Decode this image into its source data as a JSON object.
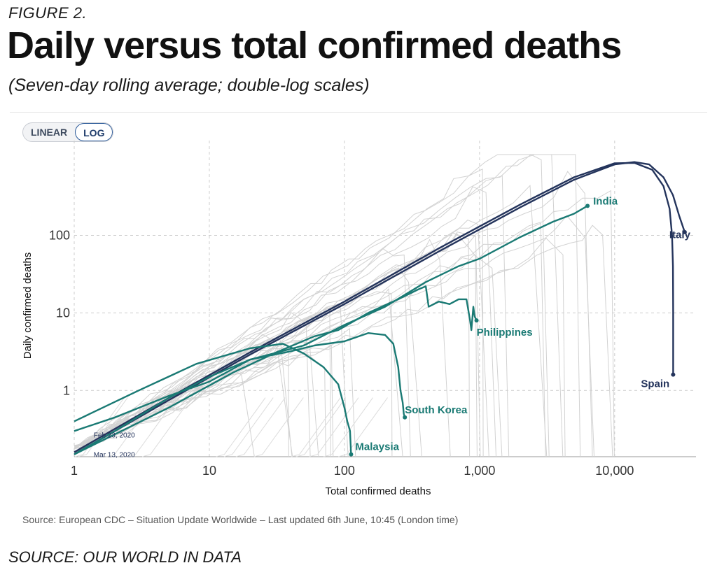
{
  "figure_label": "FIGURE 2.",
  "title": "Daily versus total confirmed deaths",
  "subtitle": "(Seven-day rolling average; double-log scales)",
  "toggle": {
    "linear_label": "LINEAR",
    "log_label": "LOG",
    "selected": "LOG"
  },
  "source_line": "Source: European CDC – Situation Update Worldwide – Last updated 6th June, 10:45 (London time)",
  "figure_source": "SOURCE: OUR WORLD IN DATA",
  "colors": {
    "highlight": "#1a7a74",
    "dark": "#24345c",
    "background_lines": "#cfcfcf",
    "grid": "#cccccc"
  },
  "chart_data": {
    "type": "line",
    "xscale": "log",
    "yscale": "log",
    "xlabel": "Total confirmed deaths",
    "ylabel": "Daily confirmed deaths",
    "xlim": [
      1,
      40000
    ],
    "ylim": [
      0.14,
      1100
    ],
    "x_ticks": [
      {
        "value": 1,
        "label": "1"
      },
      {
        "value": 10,
        "label": "10"
      },
      {
        "value": 100,
        "label": "100"
      },
      {
        "value": 1000,
        "label": "1,000"
      },
      {
        "value": 10000,
        "label": "10,000"
      }
    ],
    "y_ticks": [
      {
        "value": 1,
        "label": "1"
      },
      {
        "value": 10,
        "label": "10"
      },
      {
        "value": 100,
        "label": "100"
      }
    ],
    "grid": "dashed",
    "series": [
      {
        "name": "Italy",
        "color": "#24345c",
        "points": [
          [
            1,
            0.15
          ],
          [
            5,
            0.75
          ],
          [
            20,
            2.9
          ],
          [
            100,
            13
          ],
          [
            500,
            62
          ],
          [
            2000,
            230
          ],
          [
            5000,
            520
          ],
          [
            10000,
            820
          ],
          [
            14000,
            880
          ],
          [
            18000,
            820
          ],
          [
            23000,
            560
          ],
          [
            27000,
            330
          ],
          [
            30000,
            180
          ],
          [
            33000,
            110
          ]
        ]
      },
      {
        "name": "Spain",
        "color": "#24345c",
        "points": [
          [
            1,
            0.16
          ],
          [
            5,
            0.8
          ],
          [
            20,
            3.1
          ],
          [
            100,
            14
          ],
          [
            500,
            68
          ],
          [
            2000,
            250
          ],
          [
            5000,
            560
          ],
          [
            10000,
            850
          ],
          [
            14000,
            860
          ],
          [
            19000,
            700
          ],
          [
            23000,
            430
          ],
          [
            25500,
            220
          ],
          [
            26600,
            100
          ],
          [
            27000,
            40
          ],
          [
            27100,
            10
          ],
          [
            27100,
            1.6
          ]
        ]
      },
      {
        "name": "India",
        "color": "#1a7a74",
        "points": [
          [
            1,
            0.3
          ],
          [
            2,
            0.45
          ],
          [
            5,
            0.85
          ],
          [
            10,
            1.3
          ],
          [
            20,
            2.5
          ],
          [
            50,
            3.8
          ],
          [
            100,
            7
          ],
          [
            200,
            12
          ],
          [
            400,
            25
          ],
          [
            700,
            40
          ],
          [
            1000,
            50
          ],
          [
            2000,
            95
          ],
          [
            3500,
            150
          ],
          [
            5000,
            190
          ],
          [
            6300,
            240
          ]
        ]
      },
      {
        "name": "Philippines",
        "color": "#1a7a74",
        "points": [
          [
            1,
            0.15
          ],
          [
            5,
            0.6
          ],
          [
            15,
            1.7
          ],
          [
            30,
            3
          ],
          [
            60,
            5
          ],
          [
            90,
            6
          ],
          [
            150,
            10
          ],
          [
            250,
            15
          ],
          [
            350,
            20
          ],
          [
            400,
            22
          ],
          [
            420,
            12
          ],
          [
            500,
            14
          ],
          [
            600,
            13
          ],
          [
            700,
            15
          ],
          [
            800,
            15
          ],
          [
            850,
            8
          ],
          [
            870,
            6
          ],
          [
            900,
            12
          ],
          [
            920,
            9
          ],
          [
            950,
            8
          ]
        ]
      },
      {
        "name": "South Korea",
        "color": "#1a7a74",
        "points": [
          [
            1,
            0.15
          ],
          [
            2,
            0.3
          ],
          [
            5,
            0.8
          ],
          [
            10,
            1.5
          ],
          [
            20,
            2.5
          ],
          [
            40,
            3.2
          ],
          [
            60,
            3.8
          ],
          [
            100,
            4.3
          ],
          [
            150,
            5.5
          ],
          [
            200,
            5.2
          ],
          [
            230,
            4
          ],
          [
            250,
            2
          ],
          [
            260,
            1
          ],
          [
            270,
            0.7
          ],
          [
            275,
            0.5
          ],
          [
            280,
            0.45
          ]
        ]
      },
      {
        "name": "Malaysia",
        "color": "#1a7a74",
        "points": [
          [
            1,
            0.4
          ],
          [
            3,
            1
          ],
          [
            8,
            2.2
          ],
          [
            20,
            3.5
          ],
          [
            35,
            4
          ],
          [
            50,
            3
          ],
          [
            70,
            2
          ],
          [
            90,
            1.2
          ],
          [
            100,
            0.6
          ],
          [
            105,
            0.4
          ],
          [
            110,
            0.3
          ],
          [
            112,
            0.15
          ]
        ]
      }
    ],
    "annotations": [
      {
        "text": "Feb 23, 2020",
        "x": 1.9,
        "y": 0.27
      },
      {
        "text": "Mar 13, 2020",
        "x": 1.9,
        "y": 0.15
      }
    ]
  }
}
